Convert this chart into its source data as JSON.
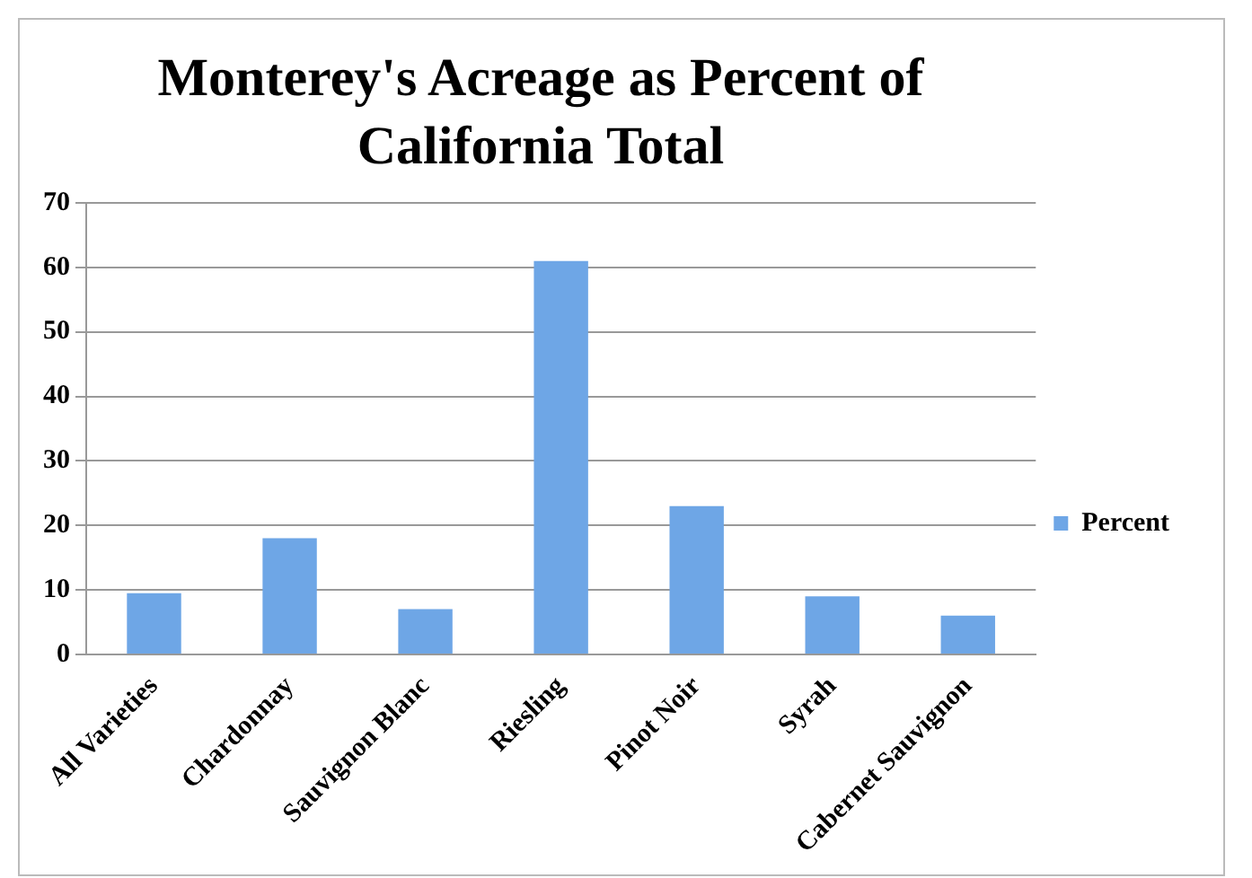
{
  "chart_data": {
    "type": "bar",
    "title": "Monterey's Acreage as Percent of California Total",
    "categories": [
      "All Varieties",
      "Chardonnay",
      "Sauvignon Blanc",
      "Riesling",
      "Pinot Noir",
      "Syrah",
      "Cabernet Sauvignon"
    ],
    "series": [
      {
        "name": "Percent",
        "color": "#6ea6e6",
        "values": [
          9.5,
          18,
          7,
          61,
          23,
          9,
          6
        ]
      }
    ],
    "ylim": [
      0,
      70
    ],
    "yticks": [
      0,
      10,
      20,
      30,
      40,
      50,
      60,
      70
    ],
    "grid": "y",
    "legend": "right"
  }
}
